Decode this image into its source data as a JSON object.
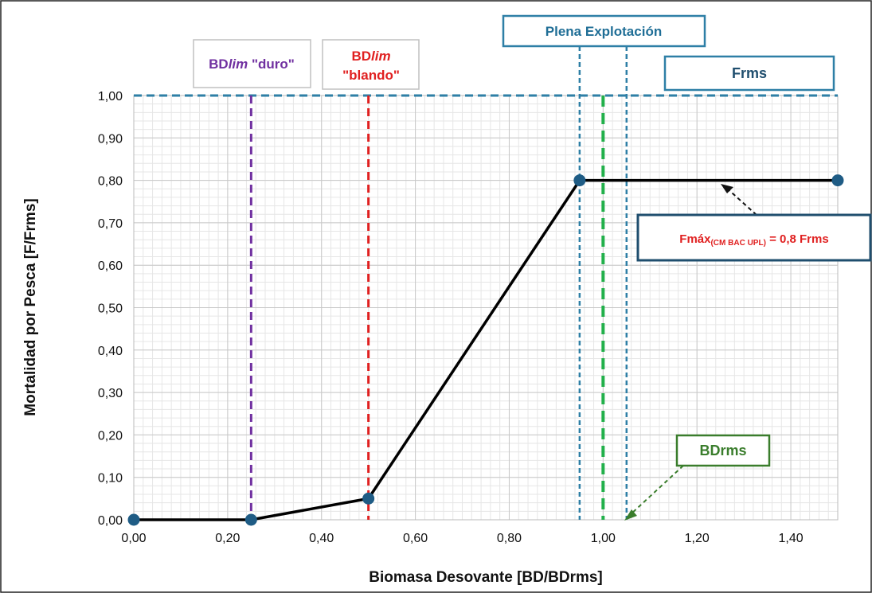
{
  "chart_data": {
    "type": "line",
    "xlabel": "Biomasa Desovante [BD/BDrms]",
    "ylabel": "Mortalidad por Pesca [F/Frms]",
    "xlim": [
      0,
      1.5
    ],
    "ylim": [
      0,
      1.0
    ],
    "x_ticks": [
      {
        "value": 0.0,
        "label": "0,00"
      },
      {
        "value": 0.2,
        "label": "0,20"
      },
      {
        "value": 0.4,
        "label": "0,40"
      },
      {
        "value": 0.6,
        "label": "0,60"
      },
      {
        "value": 0.8,
        "label": "0,80"
      },
      {
        "value": 1.0,
        "label": "1,00"
      },
      {
        "value": 1.2,
        "label": "1,20"
      },
      {
        "value": 1.4,
        "label": "1,40"
      }
    ],
    "y_ticks": [
      {
        "value": 0.0,
        "label": "0,00"
      },
      {
        "value": 0.1,
        "label": "0,10"
      },
      {
        "value": 0.2,
        "label": "0,20"
      },
      {
        "value": 0.3,
        "label": "0,30"
      },
      {
        "value": 0.4,
        "label": "0,40"
      },
      {
        "value": 0.5,
        "label": "0,50"
      },
      {
        "value": 0.6,
        "label": "0,60"
      },
      {
        "value": 0.7,
        "label": "0,70"
      },
      {
        "value": 0.8,
        "label": "0,80"
      },
      {
        "value": 0.9,
        "label": "0,90"
      },
      {
        "value": 1.0,
        "label": "1,00"
      }
    ],
    "grid": true,
    "series": [
      {
        "x": [
          0.0,
          0.25,
          0.5,
          0.95,
          1.5
        ],
        "y": [
          0.0,
          0.0,
          0.05,
          0.8,
          0.8
        ],
        "color": "#000000",
        "marker_color": "#1f5c85"
      }
    ],
    "reference_lines": [
      {
        "orientation": "horizontal",
        "value": 1.0,
        "color": "#2e7fa6",
        "style": "dashed"
      },
      {
        "orientation": "vertical",
        "value": 0.25,
        "color": "#7030a0",
        "style": "dashed"
      },
      {
        "orientation": "vertical",
        "value": 0.5,
        "color": "#e02020",
        "style": "dashed"
      },
      {
        "orientation": "vertical",
        "value": 0.95,
        "color": "#2e7fa6",
        "style": "dashed"
      },
      {
        "orientation": "vertical",
        "value": 1.05,
        "color": "#2e7fa6",
        "style": "dashed"
      },
      {
        "orientation": "vertical",
        "value": 1.0,
        "color": "#22b04b",
        "style": "dashed"
      }
    ],
    "annotations": {
      "bdlim_duro": {
        "prefix": "BD",
        "italic": "lim",
        "suffix": " \"duro\"",
        "color": "#7030a0"
      },
      "bdlim_blando": {
        "prefix": "BD",
        "italic": "lim",
        "line2": "\"blando\"",
        "color": "#e02020"
      },
      "plena_explotacion": {
        "text": "Plena Explotación",
        "color": "#1f6e96"
      },
      "frms": {
        "text": "Frms",
        "color": "#1f4e6e"
      },
      "fmax": {
        "main": "Fmáx",
        "sub": "(CM BAC UPL)",
        "suffix": " = 0,8 Frms",
        "color": "#e02020",
        "border": "#1f4e6e"
      },
      "bdrms": {
        "text": "BDrms",
        "color": "#3a7d2c"
      }
    }
  }
}
